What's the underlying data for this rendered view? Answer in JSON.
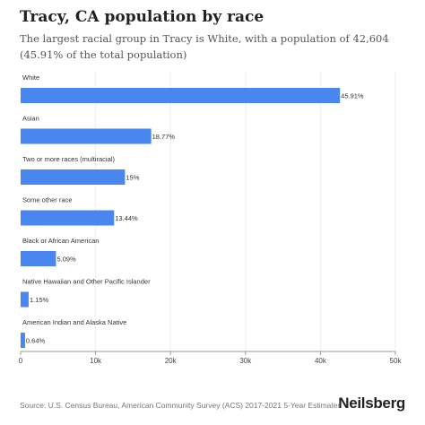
{
  "header": {
    "title": "Tracy, CA population by race",
    "subtitle": "The largest racial group in Tracy is White, with a population of 42,604 (45.91% of the total population)"
  },
  "footer": {
    "source": "Source: U.S. Census Bureau, American Community Survey (ACS) 2017-2021 5-Year Estimates",
    "brand": "Neilsberg"
  },
  "colors": {
    "bar": "#4a86f0",
    "grid": "#eeeeee",
    "axis": "#999999",
    "text": "#222222"
  },
  "chart_data": {
    "type": "bar",
    "orientation": "horizontal",
    "categories": [
      "White",
      "Asian",
      "Two or more races (multiracial)",
      "Some other race",
      "Black or African American",
      "Native Hawaiian and Other Pacific Islander",
      "American Indian and Alaska Native"
    ],
    "values": [
      42604,
      17420,
      13920,
      12470,
      4720,
      1070,
      590
    ],
    "data_labels": [
      "45.91%",
      "18.77%",
      "15%",
      "13.44%",
      "5.09%",
      "1.15%",
      "0.64%"
    ],
    "xlim": [
      0,
      50000
    ],
    "xticks": [
      0,
      10000,
      20000,
      30000,
      40000,
      50000
    ],
    "xtick_labels": [
      "0",
      "10k",
      "20k",
      "30k",
      "40k",
      "50k"
    ],
    "grid": true,
    "legend": "none"
  }
}
